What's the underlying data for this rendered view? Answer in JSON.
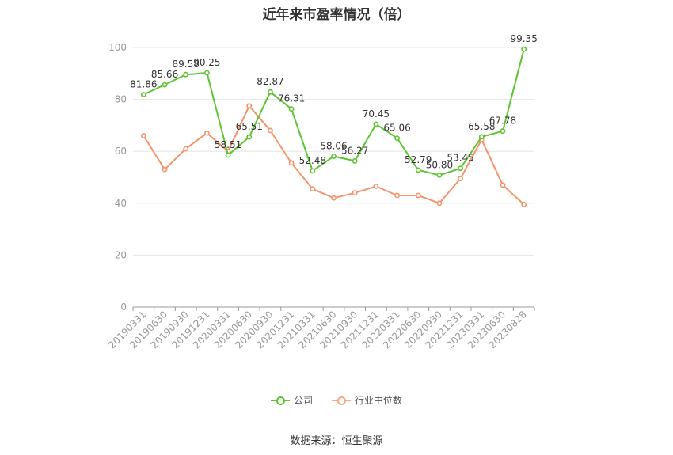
{
  "chart_data": {
    "type": "line",
    "title": "近年来市盈率情况（倍）",
    "categories": [
      "20190331",
      "20190630",
      "20190930",
      "20191231",
      "20200331",
      "20200630",
      "20200930",
      "20201231",
      "20210331",
      "20210630",
      "20210930",
      "20211231",
      "20220331",
      "20220630",
      "20220930",
      "20221231",
      "20230331",
      "20230630",
      "20230828"
    ],
    "series": [
      {
        "name": "公司",
        "color": "#5cc531",
        "values": [
          81.86,
          85.66,
          89.58,
          90.25,
          58.51,
          65.51,
          82.87,
          76.31,
          52.48,
          58.06,
          56.27,
          70.45,
          65.06,
          52.79,
          50.8,
          53.45,
          65.58,
          67.78,
          99.35
        ],
        "labels": [
          "81.86",
          "85.66",
          "89.58",
          "90.25",
          "58.51",
          "65.51",
          "82.87",
          "76.31",
          "52.48",
          "58.06",
          "56.27",
          "70.45",
          "65.06",
          "52.79",
          "50.80",
          "53.45",
          "65.58",
          "67.78",
          "99.35"
        ]
      },
      {
        "name": "行业中位数",
        "color": "#f6936a",
        "values": [
          66.0,
          53.0,
          61.0,
          67.0,
          60.0,
          77.5,
          68.0,
          55.5,
          45.5,
          42.0,
          44.0,
          46.5,
          43.0,
          43.0,
          40.0,
          49.5,
          64.5,
          47.0,
          39.5
        ]
      }
    ],
    "yticks": [
      0,
      20,
      40,
      60,
      80,
      100
    ],
    "ylim": [
      0,
      100
    ],
    "grid": true,
    "legend_position": "bottom-center"
  },
  "source": "数据来源：恒生聚源"
}
